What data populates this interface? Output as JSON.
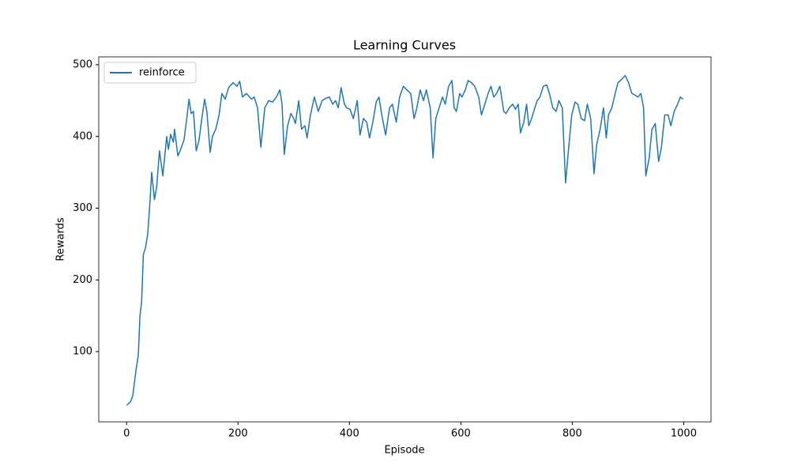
{
  "chart_data": {
    "type": "line",
    "title": "Learning Curves",
    "x_label": "Episode",
    "y_label": "Rewards",
    "x": [
      0,
      7,
      11,
      17,
      21,
      24,
      27,
      30,
      34,
      38,
      42,
      45,
      50,
      54,
      59,
      65,
      72,
      75,
      79,
      84,
      86,
      92,
      96,
      103,
      108,
      112,
      116,
      120,
      125,
      130,
      135,
      140,
      144,
      150,
      154,
      160,
      166,
      171,
      177,
      183,
      191,
      198,
      203,
      208,
      215,
      224,
      229,
      235,
      241,
      248,
      255,
      262,
      269,
      275,
      279,
      283,
      289,
      295,
      300,
      303,
      309,
      314,
      320,
      324,
      330,
      337,
      344,
      351,
      357,
      364,
      370,
      375,
      380,
      385,
      391,
      395,
      401,
      407,
      414,
      419,
      425,
      431,
      436,
      442,
      448,
      453,
      458,
      465,
      472,
      477,
      484,
      490,
      497,
      503,
      510,
      516,
      521,
      527,
      533,
      538,
      545,
      550,
      555,
      561,
      567,
      572,
      578,
      584,
      588,
      592,
      598,
      602,
      608,
      613,
      619,
      625,
      632,
      637,
      643,
      649,
      654,
      659,
      664,
      670,
      677,
      681,
      687,
      693,
      698,
      703,
      707,
      713,
      718,
      722,
      727,
      732,
      737,
      742,
      748,
      754,
      759,
      765,
      771,
      776,
      782,
      788,
      793,
      799,
      805,
      810,
      816,
      822,
      827,
      833,
      839,
      844,
      850,
      856,
      861,
      865,
      871,
      877,
      882,
      889,
      895,
      901,
      907,
      912,
      918,
      923,
      928,
      932,
      938,
      943,
      949,
      955,
      960,
      966,
      972,
      977,
      983,
      989,
      994,
      999
    ],
    "series": [
      {
        "name": "reinforce",
        "color": "#1f77b4",
        "values": [
          25,
          30,
          38,
          75,
          95,
          150,
          170,
          235,
          245,
          265,
          310,
          350,
          312,
          330,
          380,
          345,
          400,
          382,
          403,
          392,
          410,
          373,
          380,
          395,
          425,
          452,
          432,
          435,
          380,
          395,
          425,
          452,
          435,
          378,
          400,
          410,
          430,
          460,
          452,
          468,
          475,
          470,
          477,
          455,
          460,
          452,
          455,
          440,
          385,
          440,
          450,
          448,
          455,
          465,
          445,
          375,
          415,
          432,
          425,
          418,
          450,
          410,
          415,
          398,
          430,
          455,
          435,
          450,
          453,
          455,
          445,
          450,
          440,
          468,
          445,
          440,
          438,
          425,
          450,
          402,
          425,
          420,
          398,
          420,
          448,
          455,
          430,
          402,
          440,
          445,
          420,
          455,
          470,
          465,
          460,
          425,
          440,
          465,
          450,
          465,
          440,
          370,
          425,
          440,
          455,
          445,
          470,
          478,
          440,
          435,
          460,
          455,
          465,
          478,
          475,
          470,
          455,
          430,
          445,
          460,
          470,
          455,
          460,
          470,
          435,
          432,
          440,
          445,
          438,
          445,
          405,
          420,
          445,
          415,
          425,
          438,
          450,
          455,
          470,
          472,
          460,
          440,
          435,
          450,
          440,
          335,
          380,
          430,
          448,
          445,
          425,
          422,
          445,
          425,
          348,
          390,
          410,
          440,
          398,
          430,
          440,
          460,
          475,
          480,
          485,
          475,
          460,
          458,
          455,
          460,
          440,
          345,
          370,
          410,
          418,
          365,
          385,
          430,
          430,
          415,
          435,
          445,
          455,
          452
        ]
      }
    ],
    "xlim": [
      -50,
      1049
    ],
    "ylim": [
      2,
      511
    ],
    "xticks": [
      0,
      200,
      400,
      600,
      800,
      1000
    ],
    "yticks": [
      100,
      200,
      300,
      400,
      500
    ],
    "legend": "upper left"
  }
}
